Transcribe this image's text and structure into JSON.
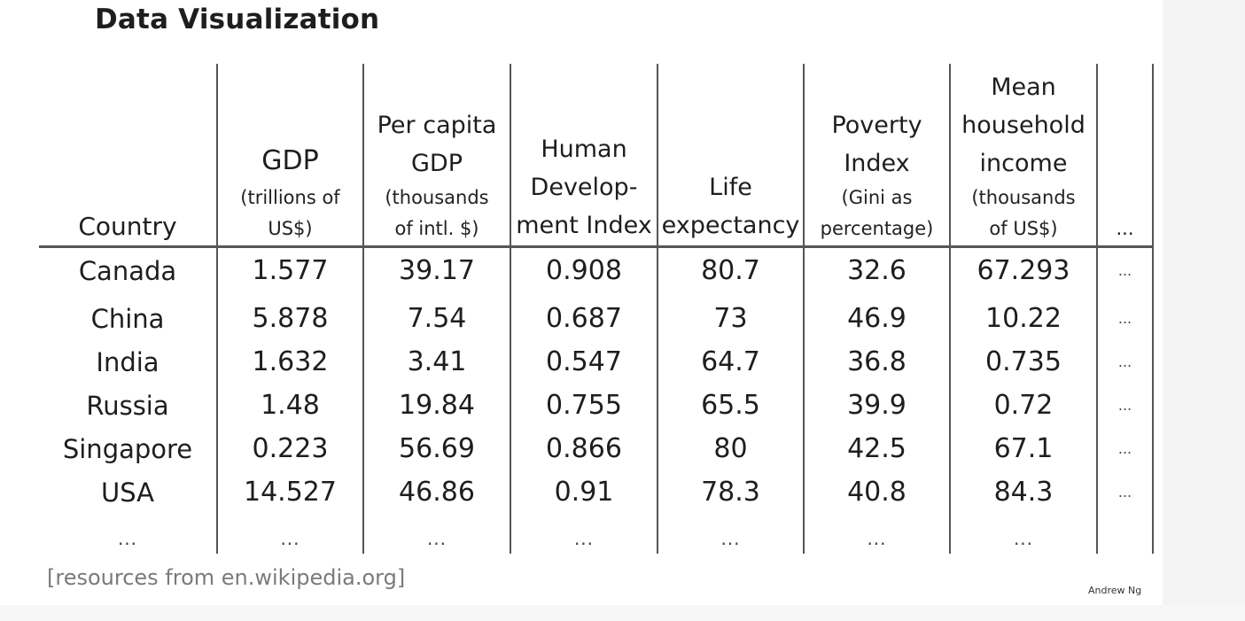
{
  "slide": {
    "title": "Data Visualization",
    "source_note": "[resources from en.wikipedia.org]",
    "author": "Andrew Ng"
  },
  "table": {
    "headers": [
      {
        "lines": [
          "Country"
        ]
      },
      {
        "main": "GDP",
        "sub": [
          "(trillions of",
          "US$)"
        ]
      },
      {
        "main": "Per capita",
        "main2": "GDP",
        "sub": [
          "(thousands",
          "of intl. $)"
        ]
      },
      {
        "lines": [
          "Human",
          "Develop-",
          "ment Index"
        ]
      },
      {
        "lines": [
          "Life",
          "expectancy"
        ]
      },
      {
        "main": "Poverty",
        "main2": "Index",
        "sub": [
          "(Gini as",
          "percentage)"
        ]
      },
      {
        "main": "Mean",
        "main2": "household",
        "main3": "income",
        "sub": [
          "(thousands",
          "of US$)"
        ]
      },
      {
        "lines": [
          "..."
        ]
      }
    ],
    "rows": [
      [
        "Canada",
        "1.577",
        "39.17",
        "0.908",
        "80.7",
        "32.6",
        "67.293",
        "..."
      ],
      [
        "China",
        "5.878",
        "7.54",
        "0.687",
        "73",
        "46.9",
        "10.22",
        "..."
      ],
      [
        "India",
        "1.632",
        "3.41",
        "0.547",
        "64.7",
        "36.8",
        "0.735",
        "..."
      ],
      [
        "Russia",
        "1.48",
        "19.84",
        "0.755",
        "65.5",
        "39.9",
        "0.72",
        "..."
      ],
      [
        "Singapore",
        "0.223",
        "56.69",
        "0.866",
        "80",
        "42.5",
        "67.1",
        "..."
      ],
      [
        "USA",
        "14.527",
        "46.86",
        "0.91",
        "78.3",
        "40.8",
        "84.3",
        "..."
      ],
      [
        "...",
        "...",
        "...",
        "...",
        "...",
        "...",
        "...",
        ""
      ]
    ]
  }
}
